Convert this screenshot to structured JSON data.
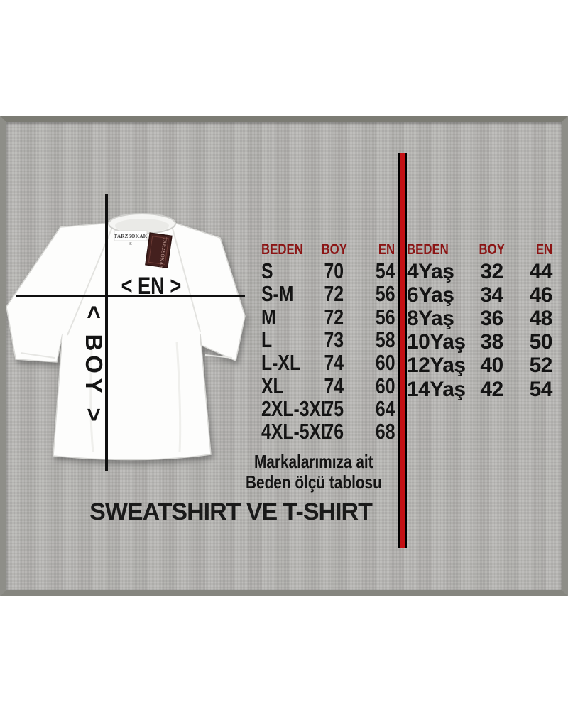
{
  "shirt": {
    "collar_label": "TARZSOKAK",
    "tag_label": "TARZSOKAK",
    "size_mark": "S"
  },
  "measure": {
    "width_label": "< EN >",
    "length_label": "< BOY >"
  },
  "adult_table": {
    "headers": [
      "BEDEN",
      "BOY",
      "EN"
    ],
    "rows": [
      [
        "S",
        "70",
        "54"
      ],
      [
        "S-M",
        "72",
        "56"
      ],
      [
        "M",
        "72",
        "56"
      ],
      [
        "L",
        "73",
        "58"
      ],
      [
        "L-XL",
        "74",
        "60"
      ],
      [
        "XL",
        "74",
        "60"
      ],
      [
        "2XL-3XL",
        "75",
        "64"
      ],
      [
        "4XL-5XL",
        "76",
        "68"
      ]
    ]
  },
  "kids_table": {
    "headers": [
      "BEDEN",
      "BOY",
      "EN"
    ],
    "rows": [
      [
        "4Yaş",
        "32",
        "44"
      ],
      [
        "6Yaş",
        "34",
        "46"
      ],
      [
        "8Yaş",
        "36",
        "48"
      ],
      [
        "10Yaş",
        "38",
        "50"
      ],
      [
        "12Yaş",
        "40",
        "52"
      ],
      [
        "14Yaş",
        "42",
        "54"
      ]
    ]
  },
  "caption": {
    "line1": "Markalarımıza ait",
    "line2": "Beden ölçü tablosu"
  },
  "title": "SWEATSHIRT VE T-SHIRT",
  "colors": {
    "table_header": "#8b1414",
    "divider_red": "#c41114",
    "tag_maroon": "#44201e",
    "panel_gray": "#b5b4b1",
    "frame_gray": "#8e8e88"
  }
}
